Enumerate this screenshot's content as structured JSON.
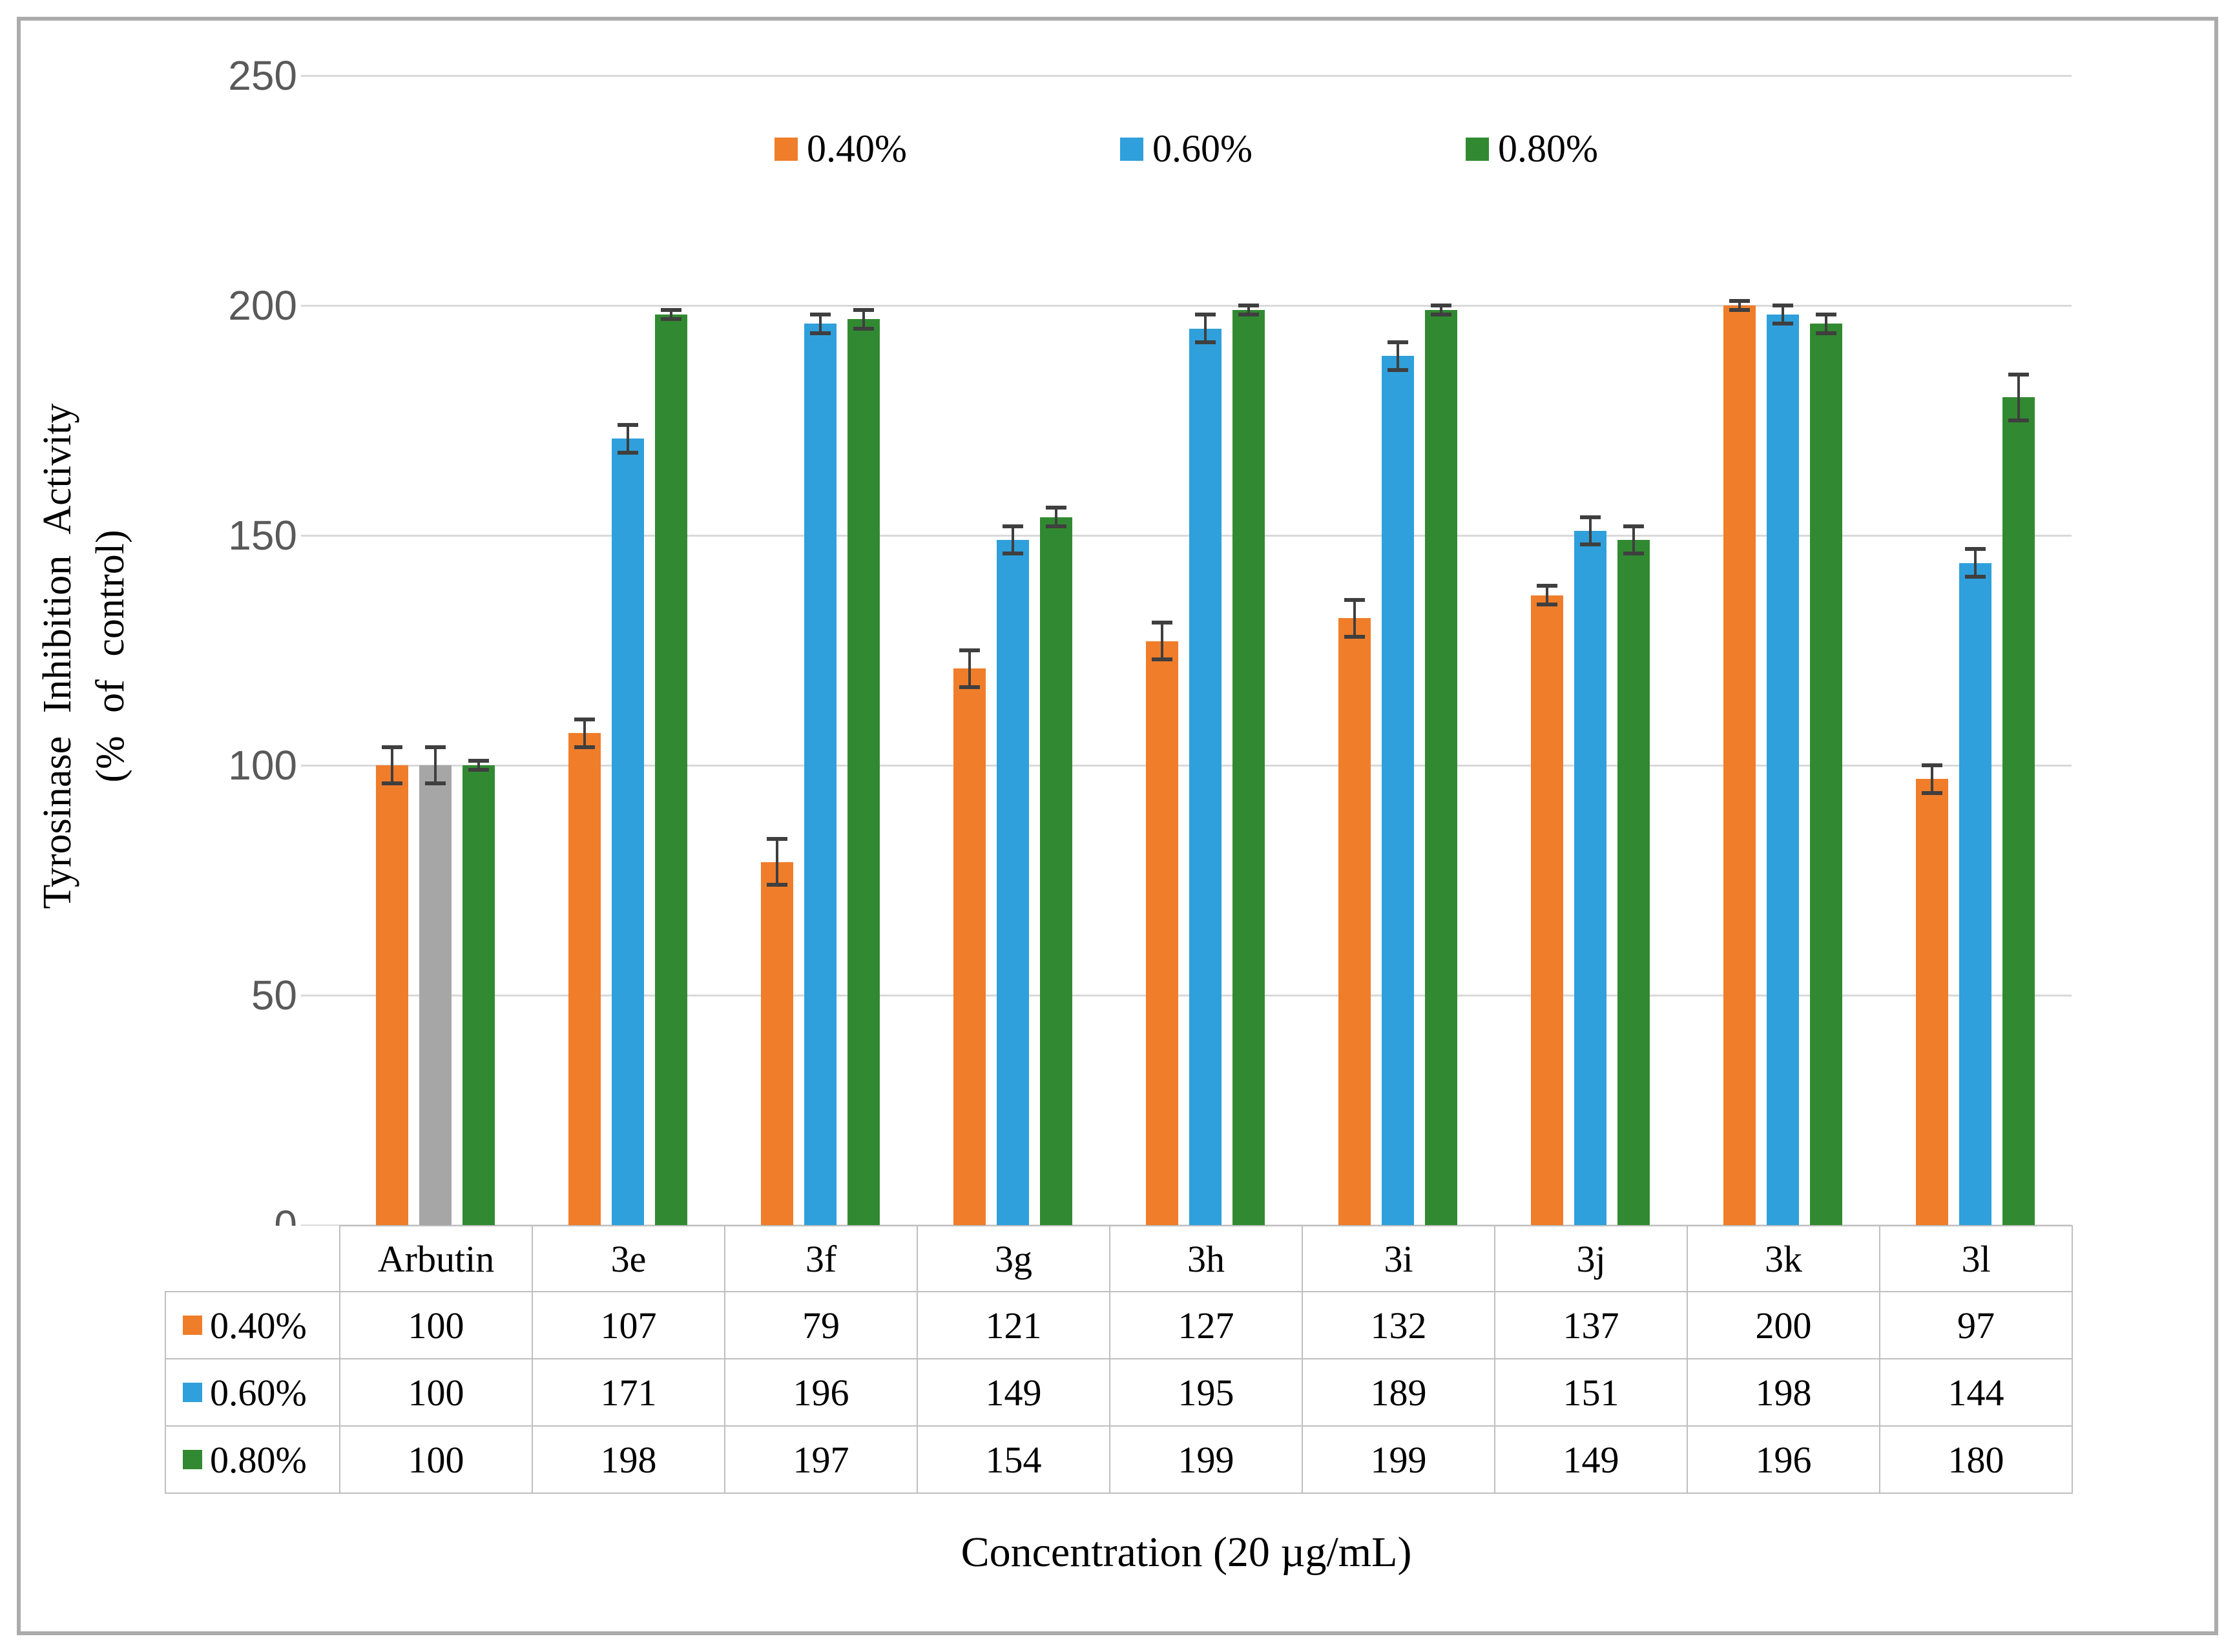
{
  "chart_data": {
    "type": "bar",
    "title": "",
    "categories": [
      "Arbutin",
      "3e",
      "3f",
      "3g",
      "3h",
      "3i",
      "3j",
      "3k",
      "3l"
    ],
    "series": [
      {
        "name": "0.40%",
        "color": "#F07D2A",
        "values": [
          100,
          107,
          79,
          121,
          127,
          132,
          137,
          200,
          97
        ],
        "errors": [
          4,
          3,
          5,
          4,
          4,
          4,
          2,
          1,
          3
        ]
      },
      {
        "name": "0.60%",
        "color": "#2FA0DB",
        "values": [
          100,
          171,
          196,
          149,
          195,
          189,
          151,
          198,
          144
        ],
        "errors": [
          4,
          3,
          2,
          3,
          3,
          3,
          3,
          2,
          3
        ],
        "color_overrides": {
          "Arbutin": "#A6A6A6"
        }
      },
      {
        "name": "0.80%",
        "color": "#318A31",
        "values": [
          100,
          198,
          197,
          154,
          199,
          199,
          149,
          196,
          180
        ],
        "errors": [
          1,
          1,
          2,
          2,
          1,
          1,
          3,
          2,
          5
        ]
      }
    ],
    "ylabel_line1": "Tyrosinase Inhibition Activity",
    "ylabel_line2": "(% of control)",
    "xlabel": "Concentration (20 µg/mL)",
    "yticks": [
      0,
      50,
      100,
      150,
      200,
      250
    ],
    "ylim": [
      0,
      250
    ],
    "grid": true,
    "legend_position": "top-center",
    "error_bar_color": "#3F3F3F",
    "gridline_color": "#D9D9D9",
    "tick_label_color": "#595959",
    "frame_color": "#ABABAB",
    "table_border_color": "#BFBFBF"
  }
}
